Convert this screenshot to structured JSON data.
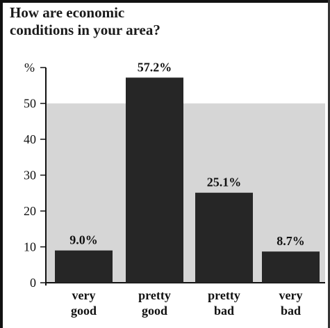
{
  "chart_data": {
    "type": "bar",
    "title": "How are economic conditions in your area?",
    "title_lines": [
      "How are economic",
      "conditions in your area?"
    ],
    "ylabel": "%",
    "yticks": [
      0,
      10,
      20,
      30,
      40,
      50
    ],
    "ylim": [
      0,
      60
    ],
    "categories": [
      [
        "very",
        "good"
      ],
      [
        "pretty",
        "good"
      ],
      [
        "pretty",
        "bad"
      ],
      [
        "very",
        "bad"
      ]
    ],
    "values": [
      9.0,
      57.2,
      25.1,
      8.7
    ],
    "value_labels": [
      "9.0%",
      "57.2%",
      "25.1%",
      "8.7%"
    ],
    "grid": false,
    "colors": {
      "bar": "#262626",
      "background_band": "#d6d6d6",
      "axis": "#111111"
    }
  }
}
